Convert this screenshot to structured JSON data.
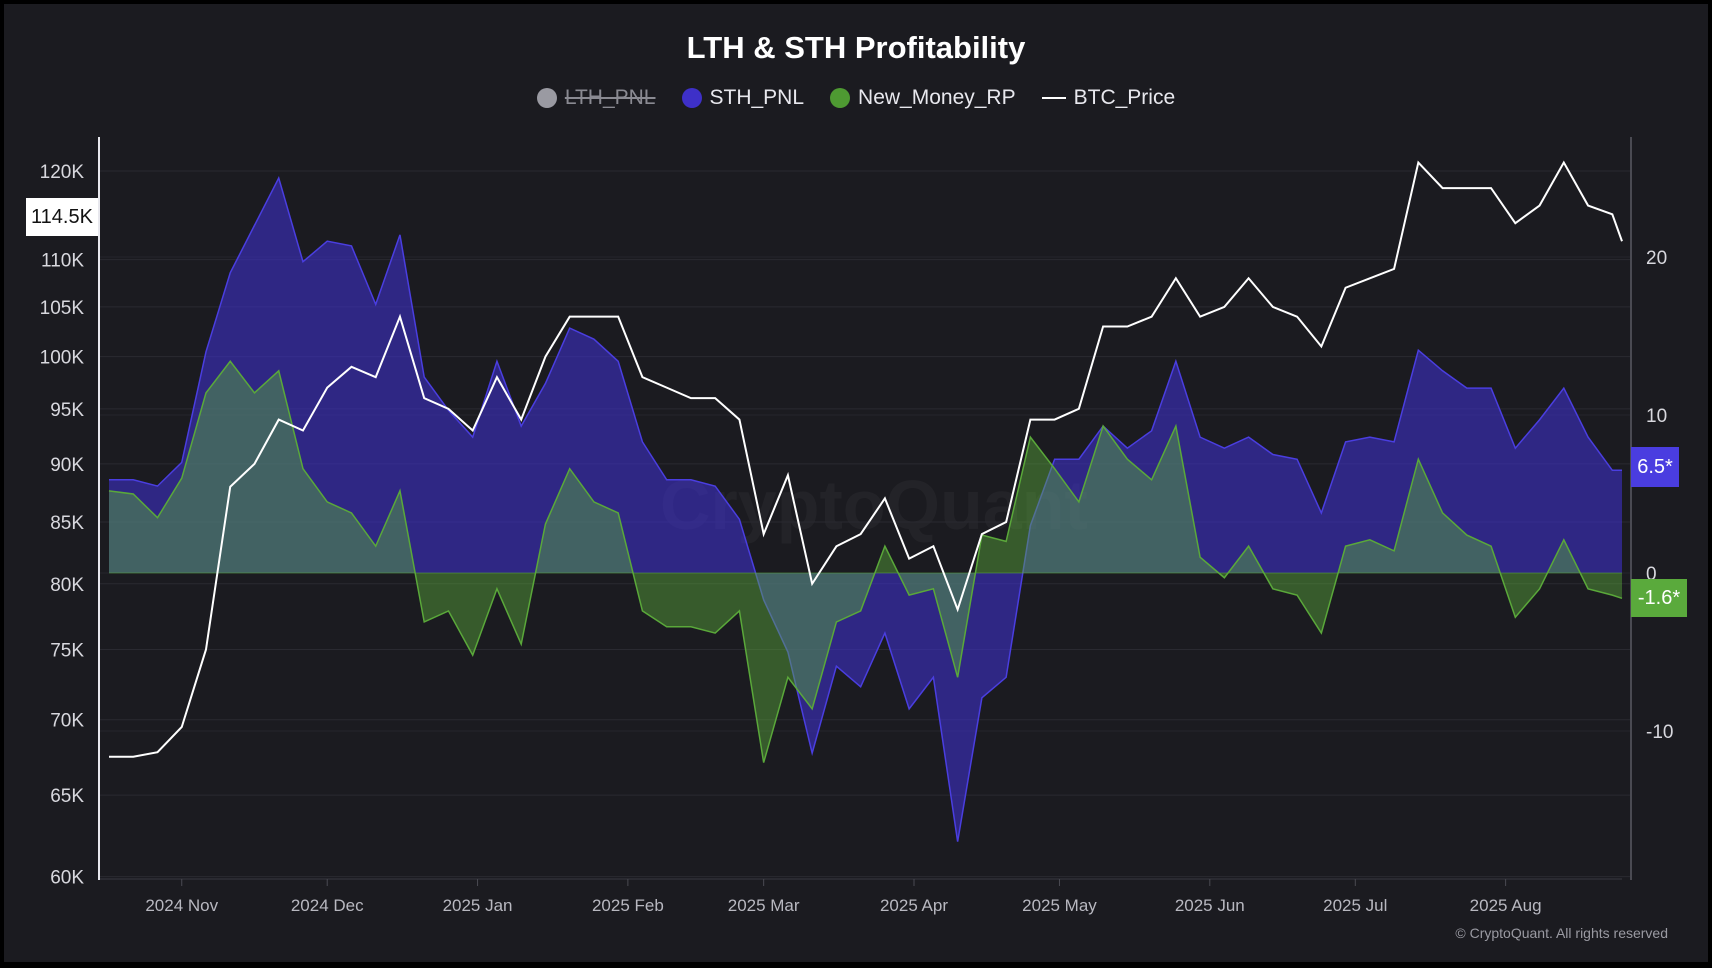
{
  "chart_data": {
    "type": "area",
    "title": "LTH & STH Profitability",
    "legend": [
      {
        "name": "LTH_PNL",
        "color": "#9a9aa2",
        "hidden": true
      },
      {
        "name": "STH_PNL",
        "color": "#3e30c8"
      },
      {
        "name": "New_Money_RP",
        "color": "#5aa83a"
      },
      {
        "name": "BTC_Price",
        "color": "#ffffff"
      }
    ],
    "legend_placement": "top",
    "x": [
      "2024-10-17",
      "2024-10-22",
      "2024-10-27",
      "2024-11-01",
      "2024-11-06",
      "2024-11-11",
      "2024-11-16",
      "2024-11-21",
      "2024-11-26",
      "2024-12-01",
      "2024-12-06",
      "2024-12-11",
      "2024-12-16",
      "2024-12-21",
      "2024-12-26",
      "2024-12-31",
      "2025-01-05",
      "2025-01-10",
      "2025-01-15",
      "2025-01-20",
      "2025-01-25",
      "2025-01-30",
      "2025-02-04",
      "2025-02-09",
      "2025-02-14",
      "2025-02-19",
      "2025-02-24",
      "2025-03-01",
      "2025-03-06",
      "2025-03-11",
      "2025-03-16",
      "2025-03-21",
      "2025-03-26",
      "2025-03-31",
      "2025-04-05",
      "2025-04-10",
      "2025-04-15",
      "2025-04-20",
      "2025-04-25",
      "2025-04-30",
      "2025-05-05",
      "2025-05-10",
      "2025-05-15",
      "2025-05-20",
      "2025-05-25",
      "2025-05-30",
      "2025-06-04",
      "2025-06-09",
      "2025-06-14",
      "2025-06-19",
      "2025-06-24",
      "2025-06-29",
      "2025-07-04",
      "2025-07-09",
      "2025-07-14",
      "2025-07-19",
      "2025-07-24",
      "2025-07-29",
      "2025-08-03",
      "2025-08-08",
      "2025-08-13",
      "2025-08-18",
      "2025-08-23",
      "2025-08-25"
    ],
    "series": [
      {
        "name": "STH_PNL",
        "axis": "right",
        "values": [
          5.9,
          5.9,
          5.5,
          7,
          14,
          19,
          22,
          25,
          19.7,
          21,
          20.7,
          17,
          21.4,
          12.4,
          10.3,
          8.6,
          13.4,
          9.3,
          12,
          15.5,
          14.8,
          13.4,
          8.3,
          5.9,
          5.9,
          5.5,
          3.4,
          -1.7,
          -5,
          -11.4,
          -5.9,
          -7.2,
          -3.8,
          -8.6,
          -6.6,
          -17,
          -7.9,
          -6.6,
          3,
          7.2,
          7.2,
          9.3,
          7.9,
          9,
          13.4,
          8.6,
          7.9,
          8.6,
          7.5,
          7.2,
          3.8,
          8.3,
          8.6,
          8.3,
          14.1,
          12.8,
          11.7,
          11.7,
          7.9,
          9.7,
          11.7,
          8.6,
          6.5,
          6.5
        ]
      },
      {
        "name": "New_Money_RP",
        "axis": "right",
        "values": [
          5.2,
          5,
          3.5,
          6,
          11.4,
          13.4,
          11.4,
          12.8,
          6.6,
          4.5,
          3.8,
          1.7,
          5.2,
          -3.1,
          -2.4,
          -5.2,
          -1,
          -4.5,
          3.1,
          6.6,
          4.5,
          3.8,
          -2.4,
          -3.4,
          -3.4,
          -3.8,
          -2.4,
          -12,
          -6.6,
          -8.6,
          -3.1,
          -2.4,
          1.7,
          -1.4,
          -1,
          -6.6,
          2.4,
          2,
          8.6,
          6.6,
          4.5,
          9.3,
          7.2,
          5.9,
          9.3,
          1,
          -0.3,
          1.7,
          -1,
          -1.4,
          -3.8,
          1.7,
          2.1,
          1.4,
          7.2,
          3.8,
          2.4,
          1.7,
          -2.8,
          -1,
          2.1,
          -1,
          -1.4,
          -1.6
        ]
      },
      {
        "name": "BTC_Price",
        "axis": "left",
        "unit": "K",
        "values": [
          67.5,
          67.5,
          67.8,
          69.5,
          75,
          88,
          90,
          94,
          93,
          97,
          99,
          98,
          104,
          96,
          95,
          93,
          98,
          94,
          100,
          104,
          104,
          104,
          98,
          97,
          96,
          96,
          94,
          84,
          89,
          80,
          83,
          84,
          87,
          82,
          83,
          78,
          84,
          85,
          94,
          94,
          95,
          103,
          103,
          104,
          108,
          104,
          105,
          108,
          105,
          104,
          101,
          107,
          108,
          109,
          121,
          118,
          118,
          118,
          114,
          116,
          121,
          116,
          115,
          112
        ]
      }
    ],
    "left_axis": {
      "scale": "log",
      "range": [
        60,
        125
      ],
      "ticks": [
        "60K",
        "65K",
        "70K",
        "75K",
        "80K",
        "85K",
        "90K",
        "95K",
        "100K",
        "105K",
        "110K",
        "120K"
      ],
      "tick_values": [
        60,
        65,
        70,
        75,
        80,
        85,
        90,
        95,
        100,
        105,
        110,
        120
      ]
    },
    "right_axis": {
      "scale": "linear",
      "range": [
        -20,
        28
      ],
      "ticks": [
        "-10",
        "0",
        "10",
        "20"
      ],
      "tick_values": [
        -10,
        0,
        10,
        20
      ]
    },
    "x_ticks": [
      {
        "date": "2024-11-01",
        "label": "2024 Nov"
      },
      {
        "date": "2024-12-01",
        "label": "2024 Dec"
      },
      {
        "date": "2025-01-01",
        "label": "2025 Jan"
      },
      {
        "date": "2025-02-01",
        "label": "2025 Feb"
      },
      {
        "date": "2025-03-01",
        "label": "2025 Mar"
      },
      {
        "date": "2025-04-01",
        "label": "2025 Apr"
      },
      {
        "date": "2025-05-01",
        "label": "2025 May"
      },
      {
        "date": "2025-06-01",
        "label": "2025 Jun"
      },
      {
        "date": "2025-07-01",
        "label": "2025 Jul"
      },
      {
        "date": "2025-08-01",
        "label": "2025 Aug"
      }
    ],
    "grid": true,
    "crosshair_label": "114.5K",
    "last_value_labels": {
      "sth": "6.5*",
      "new_money": "-1.6*"
    },
    "colors": {
      "background": "#1b1b20",
      "sth_badge": "#4a3de0",
      "nm_badge": "#5aaa3c"
    }
  },
  "watermark": "CryptoQuant",
  "copyright": "© CryptoQuant. All rights reserved"
}
